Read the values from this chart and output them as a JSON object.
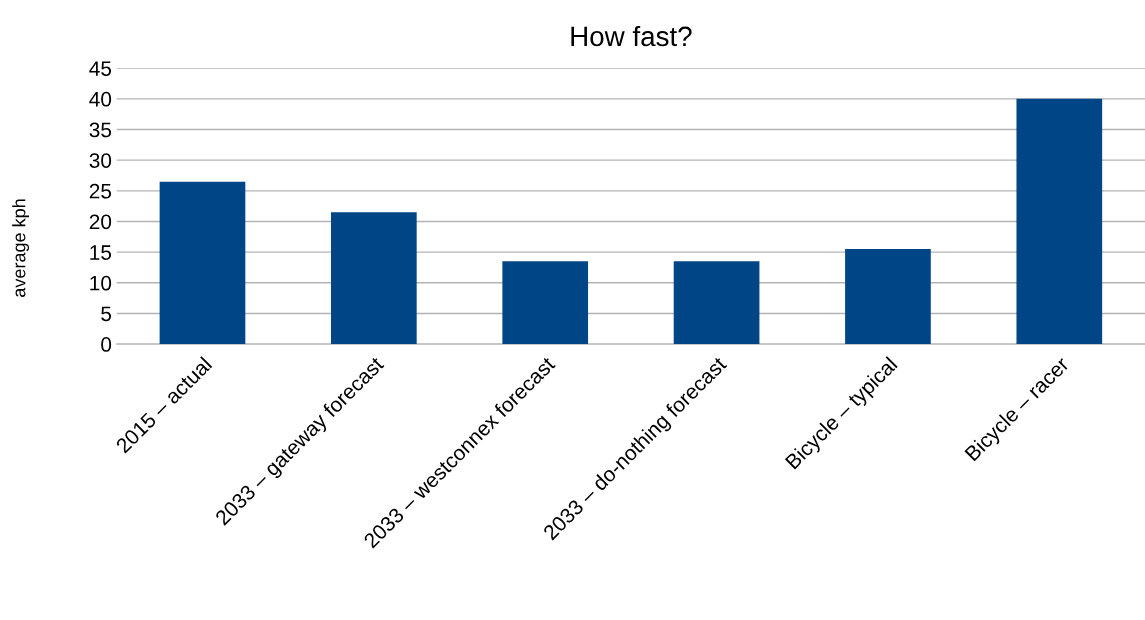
{
  "chart_data": {
    "type": "bar",
    "title": "How fast?",
    "ylabel": "average kph",
    "categories": [
      "2015 – actual",
      "2033 – gateway forecast",
      "2033 – westconnex forecast",
      "2033 – do-nothing forecast",
      "Bicycle – typical",
      "Bicycle – racer"
    ],
    "values": [
      26.5,
      21.5,
      13.5,
      13.5,
      15.5,
      40
    ],
    "color": "#004586",
    "ylim": [
      0,
      45
    ],
    "yticks": [
      0,
      5,
      10,
      15,
      20,
      25,
      30,
      35,
      40,
      45
    ],
    "grid": "y",
    "legend": false
  }
}
